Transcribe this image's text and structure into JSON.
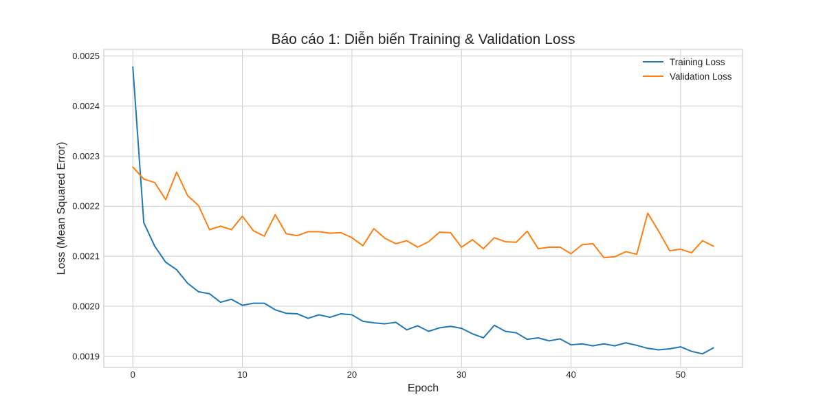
{
  "chart_data": {
    "type": "line",
    "title": "Báo cáo 1: Diễn biến Training & Validation Loss",
    "xlabel": "Epoch",
    "ylabel": "Loss (Mean Squared Error)",
    "xlim": [
      -2.65,
      55.65
    ],
    "ylim": [
      0.001878,
      0.002513
    ],
    "x_ticks": [
      0,
      10,
      20,
      30,
      40,
      50
    ],
    "y_ticks": [
      0.0019,
      0.002,
      0.0021,
      0.0022,
      0.0023,
      0.0024,
      0.0025
    ],
    "y_tick_labels": [
      "0.0019",
      "0.0020",
      "0.0021",
      "0.0022",
      "0.0023",
      "0.0024",
      "0.0025"
    ],
    "grid": true,
    "legend_position": "upper right",
    "x": [
      0,
      1,
      2,
      3,
      4,
      5,
      6,
      7,
      8,
      9,
      10,
      11,
      12,
      13,
      14,
      15,
      16,
      17,
      18,
      19,
      20,
      21,
      22,
      23,
      24,
      25,
      26,
      27,
      28,
      29,
      30,
      31,
      32,
      33,
      34,
      35,
      36,
      37,
      38,
      39,
      40,
      41,
      42,
      43,
      44,
      45,
      46,
      47,
      48,
      49,
      50,
      51,
      52,
      53
    ],
    "series": [
      {
        "name": "Training Loss",
        "color": "#1f77b4",
        "values": [
          0.002478,
          0.002167,
          0.00212,
          0.002088,
          0.002073,
          0.002046,
          0.002029,
          0.002025,
          0.002008,
          0.002014,
          0.002002,
          0.002006,
          0.002006,
          0.001993,
          0.001986,
          0.001985,
          0.001976,
          0.001983,
          0.001978,
          0.001985,
          0.001983,
          0.00197,
          0.001967,
          0.001965,
          0.001968,
          0.001953,
          0.001961,
          0.00195,
          0.001957,
          0.00196,
          0.001956,
          0.001945,
          0.001937,
          0.001962,
          0.00195,
          0.001947,
          0.001934,
          0.001937,
          0.001931,
          0.001935,
          0.001923,
          0.001925,
          0.001921,
          0.001925,
          0.001921,
          0.001927,
          0.001922,
          0.001916,
          0.001913,
          0.001915,
          0.001919,
          0.00191,
          0.001905,
          0.001917
        ]
      },
      {
        "name": "Validation Loss",
        "color": "#ff7f0e",
        "values": [
          0.002278,
          0.002254,
          0.002247,
          0.002213,
          0.002268,
          0.002221,
          0.002201,
          0.002153,
          0.00216,
          0.002153,
          0.00218,
          0.002151,
          0.00214,
          0.002183,
          0.002145,
          0.002141,
          0.002149,
          0.002149,
          0.002146,
          0.002147,
          0.002137,
          0.002121,
          0.002155,
          0.002136,
          0.002125,
          0.002131,
          0.002118,
          0.002129,
          0.002148,
          0.002147,
          0.002118,
          0.002133,
          0.002115,
          0.002137,
          0.002129,
          0.002128,
          0.00215,
          0.002115,
          0.002118,
          0.002118,
          0.002105,
          0.002123,
          0.002125,
          0.002097,
          0.002099,
          0.002109,
          0.002104,
          0.002186,
          0.00215,
          0.002111,
          0.002114,
          0.002107,
          0.002131,
          0.00212
        ]
      }
    ]
  }
}
